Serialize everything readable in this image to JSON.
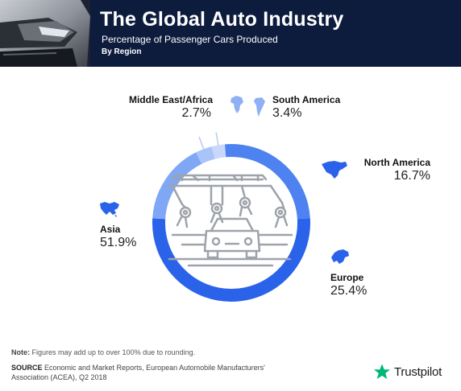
{
  "header": {
    "title": "The Global Auto Industry",
    "subtitle": "Percentage of Passenger Cars Produced",
    "subtitle2": "By Region"
  },
  "chart_data": {
    "type": "pie",
    "title": "The Global Auto Industry",
    "subtitle": "Percentage of Passenger Cars Produced",
    "categories": [
      "Asia",
      "North America",
      "South America",
      "Middle East/Africa",
      "Europe"
    ],
    "values": [
      51.9,
      16.7,
      3.4,
      2.7,
      25.4
    ],
    "value_labels": [
      "51.9%",
      "16.7%",
      "3.4%",
      "2.7%",
      "25.4%"
    ],
    "colors": [
      "#2a63ea",
      "#7fa7f5",
      "#a9c4f8",
      "#c7d8fb",
      "#4d82f0"
    ],
    "style": "donut"
  },
  "regions": {
    "asia": {
      "name": "Asia",
      "value": "51.9%"
    },
    "north_america": {
      "name": "North America",
      "value": "16.7%"
    },
    "south_america": {
      "name": "South America",
      "value": "3.4%"
    },
    "mea": {
      "name": "Middle East/Africa",
      "value": "2.7%"
    },
    "europe": {
      "name": "Europe",
      "value": "25.4%"
    }
  },
  "footer": {
    "note_label": "Note:",
    "note_text": " Figures may add up to over 100% due to rounding.",
    "source_label": "SOURCE",
    "source_text": " Economic and Market Reports, European Automobile Manufacturers' Association (ACEA), Q2 2018",
    "brand": "Trustpilot",
    "brand_color": "#00b67a"
  }
}
